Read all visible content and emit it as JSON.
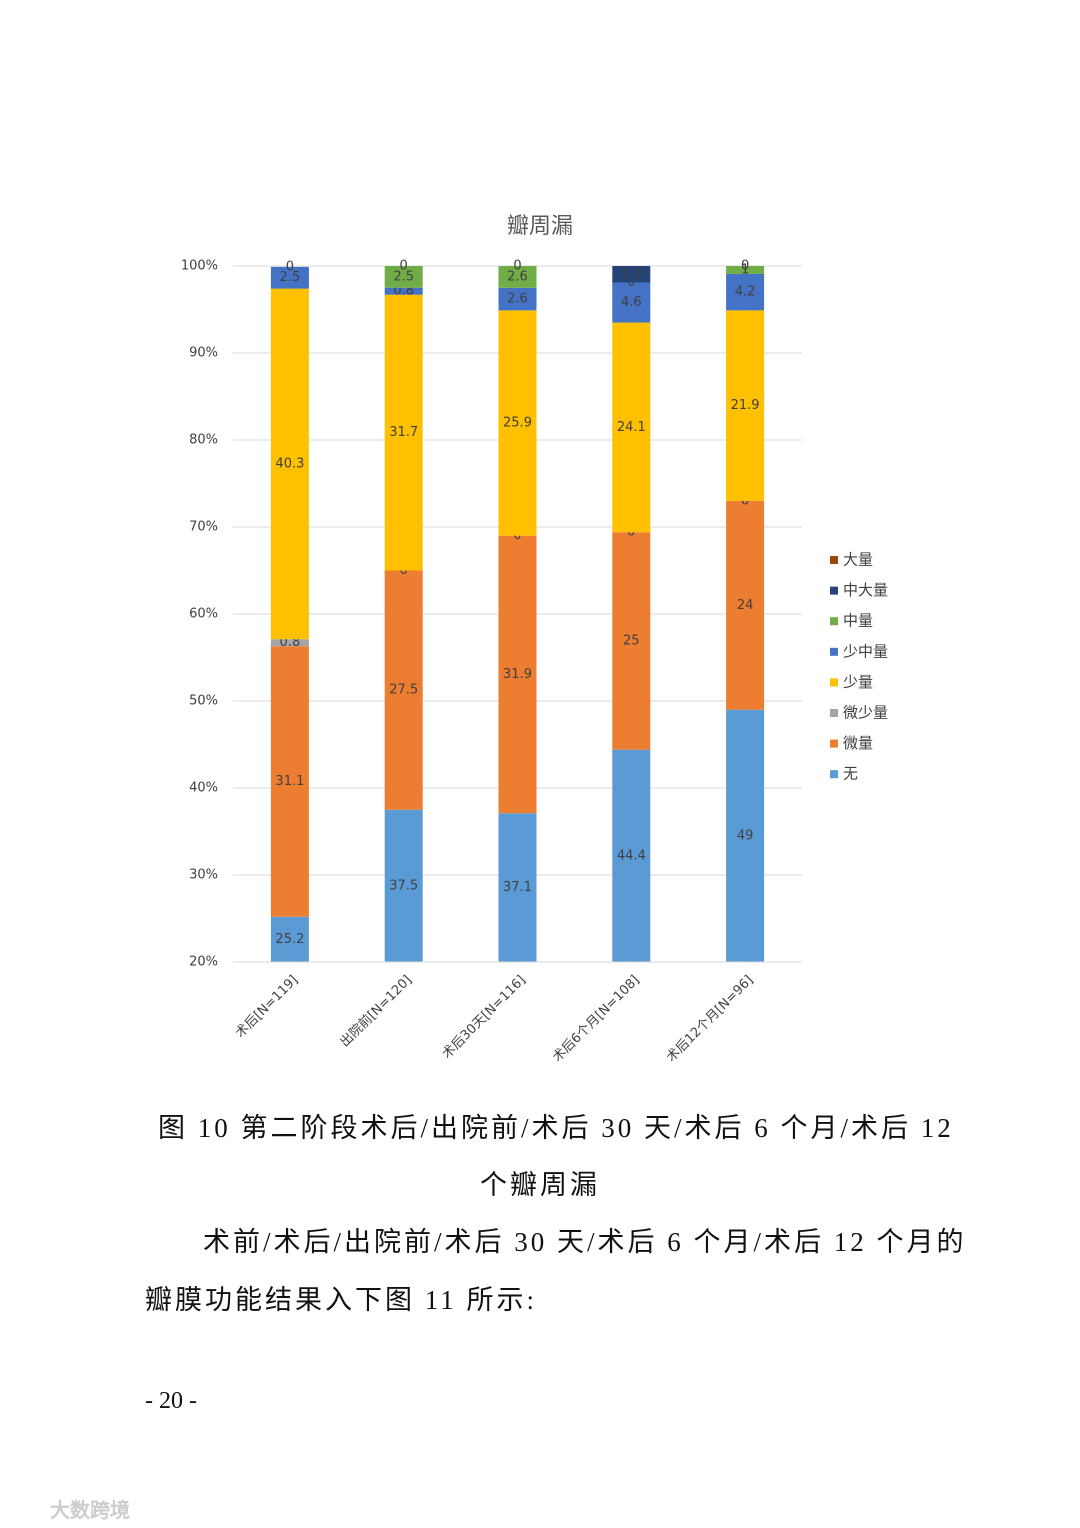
{
  "chart_data": {
    "type": "stacked_bar",
    "title": "瓣周漏",
    "categories": [
      "术后[N=119]",
      "出院前[N=120]",
      "术后30天[N=116]",
      "术后6个月[N=108]",
      "术后12个月[N=96]"
    ],
    "series": [
      {
        "name": "无",
        "color": "#5b9bd5",
        "values": [
          25.2,
          37.5,
          37.1,
          44.4,
          49
        ]
      },
      {
        "name": "微量",
        "color": "#ed7d31",
        "values": [
          31.1,
          27.5,
          31.9,
          25,
          24
        ]
      },
      {
        "name": "微少量",
        "color": "#a5a5a5",
        "values": [
          0.8,
          0,
          0,
          0,
          0
        ]
      },
      {
        "name": "少量",
        "color": "#ffc000",
        "values": [
          40.3,
          31.7,
          25.9,
          24.1,
          21.9
        ]
      },
      {
        "name": "少中量",
        "color": "#4472c4",
        "values": [
          2.5,
          0.8,
          2.6,
          4.6,
          4.2
        ]
      },
      {
        "name": "中量",
        "color": "#70ad47",
        "values": [
          null,
          2.5,
          2.6,
          0,
          1
        ]
      },
      {
        "name": "中大量",
        "color": "#264478",
        "values": [
          0,
          0,
          0,
          1.9,
          0
        ]
      },
      {
        "name": "大量",
        "color": "#9e480e",
        "values": [
          null,
          null,
          null,
          null,
          null
        ]
      }
    ],
    "ylim": [
      20,
      100
    ],
    "yticks": [
      {
        "value": 20,
        "label": "20%"
      },
      {
        "value": 30,
        "label": "30%"
      },
      {
        "value": 40,
        "label": "40%"
      },
      {
        "value": 50,
        "label": "50%"
      },
      {
        "value": 60,
        "label": "60%"
      },
      {
        "value": 70,
        "label": "70%"
      },
      {
        "value": 80,
        "label": "80%"
      },
      {
        "value": 90,
        "label": "90%"
      },
      {
        "value": 100,
        "label": "100%"
      }
    ],
    "grid": true,
    "legend": "right"
  },
  "caption": [
    "图 10 第二阶段术后/出院前/术后 30 天/术后 6 个月/术后 12",
    "个瓣周漏"
  ],
  "paragraph": [
    "术前/术后/出院前/术后 30 天/术后 6 个月/术后 12 个月的",
    "瓣膜功能结果入下图 11 所示:"
  ],
  "page_number": "- 20 -",
  "watermark": "大数跨境"
}
